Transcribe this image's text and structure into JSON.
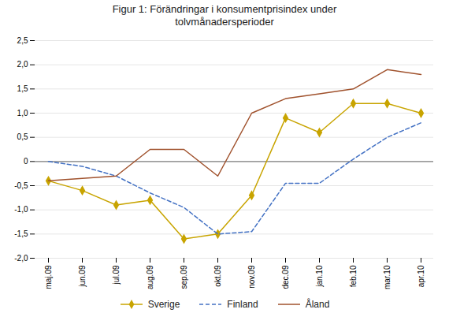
{
  "chart_data": {
    "type": "line",
    "title": "Figur 1: Förändringar i konsumentprisindex under\ntolvmånadersperioder",
    "categories": [
      "maj.09",
      "jun.09",
      "jul.09",
      "aug.09",
      "sep.09",
      "okt.09",
      "nov.09",
      "dec.09",
      "jan.10",
      "feb.10",
      "mar.10",
      "apr.10"
    ],
    "series": [
      {
        "name": "Sverige",
        "color": "#C8A400",
        "marker": "diamond",
        "line_style": "solid",
        "values": [
          -0.4,
          -0.6,
          -0.9,
          -0.8,
          -1.6,
          -1.5,
          -0.7,
          0.9,
          0.6,
          1.2,
          1.2,
          1.0
        ]
      },
      {
        "name": "Finland",
        "color": "#4472C4",
        "line_style": "dashed",
        "values": [
          0.0,
          -0.1,
          -0.3,
          -0.65,
          -0.95,
          -1.5,
          -1.45,
          -0.45,
          -0.45,
          0.05,
          0.5,
          0.8
        ]
      },
      {
        "name": "Åland",
        "color": "#A0522D",
        "line_style": "solid",
        "values": [
          -0.4,
          -0.35,
          -0.3,
          0.25,
          0.25,
          -0.3,
          1.0,
          1.3,
          1.4,
          1.5,
          1.9,
          1.8
        ]
      }
    ],
    "ylim": [
      -2.0,
      2.5
    ],
    "yticks": [
      {
        "value": -2.0,
        "label": "-2,0"
      },
      {
        "value": -1.5,
        "label": "-1,5"
      },
      {
        "value": -1.0,
        "label": "-1,0"
      },
      {
        "value": -0.5,
        "label": "-0,5"
      },
      0,
      {
        "value": 0.5,
        "label": "0,5"
      },
      {
        "value": 1.0,
        "label": "1,0"
      },
      {
        "value": 1.5,
        "label": "1,5"
      },
      {
        "value": 2.0,
        "label": "2,0"
      },
      {
        "value": 2.5,
        "label": "2,5"
      }
    ],
    "grid": true,
    "legend": "bottom"
  }
}
